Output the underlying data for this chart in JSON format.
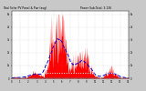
{
  "title": "Total Solar PV Panel & Pwr (avg)",
  "subtitle": "Power Sub-Total: 3.136",
  "bg_color": "#c8c8c8",
  "plot_bg": "#ffffff",
  "bar_color": "#ff0000",
  "avg_color": "#0000cc",
  "hline_color": "#ffffff",
  "hline_y": 0.08,
  "grid_color": "#888888",
  "n_points": 350,
  "ylim_max": 1.05,
  "avg_window": 40,
  "seed": 17
}
